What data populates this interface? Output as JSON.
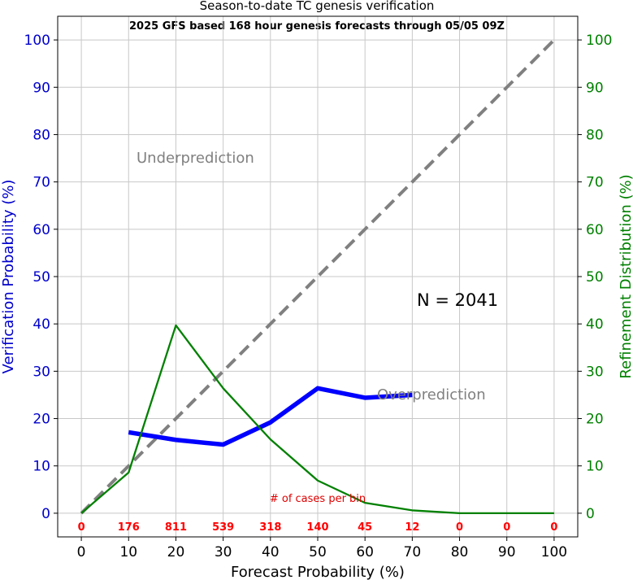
{
  "chart_data": {
    "type": "line",
    "title": "Season-to-date TC genesis verification",
    "subtitle": "2025 GFS based 168 hour genesis forecasts through 05/05 09Z",
    "xlabel": "Forecast Probability (%)",
    "ylabel_left": "Verification Probability (%)",
    "ylabel_right": "Refinement Distribution (%)",
    "xlim": [
      -5,
      105
    ],
    "ylim": [
      -5,
      105
    ],
    "xticks": [
      0,
      10,
      20,
      30,
      40,
      50,
      60,
      70,
      80,
      90,
      100
    ],
    "yticks": [
      0,
      10,
      20,
      30,
      40,
      50,
      60,
      70,
      80,
      90,
      100
    ],
    "grid": true,
    "series": [
      {
        "x": [
          0,
          100
        ],
        "y": [
          0,
          100
        ],
        "color": "#808080",
        "style": "dashed"
      },
      {
        "x": [
          10,
          20,
          30,
          40,
          50,
          60,
          70
        ],
        "y": [
          17.1,
          15.5,
          14.5,
          19.2,
          26.4,
          24.4,
          25.0
        ],
        "color": "#0000ff",
        "style": "solid"
      },
      {
        "x": [
          0,
          10,
          20,
          30,
          40,
          50,
          60,
          70,
          80,
          90,
          100
        ],
        "y": [
          0.0,
          8.6,
          39.7,
          26.4,
          15.6,
          6.9,
          2.2,
          0.6,
          0.0,
          0.0,
          0.0
        ],
        "color": "#008000",
        "style": "solid"
      }
    ],
    "annotations": {
      "underprediction": "Underprediction",
      "overprediction": "Overprediction",
      "n_label": "N = 2041",
      "cases_label": "# of cases per bin"
    },
    "cases_per_bin": {
      "x": [
        0,
        10,
        20,
        30,
        40,
        50,
        60,
        70,
        80,
        90,
        100
      ],
      "labels": [
        "0",
        "176",
        "811",
        "539",
        "318",
        "140",
        "45",
        "12",
        "0",
        "0",
        "0"
      ],
      "color": "#ff0000"
    },
    "colors": {
      "left_axis": "#0000cc",
      "right_axis": "#008000",
      "grid": "#c8c8c8",
      "annotation": "#808080"
    }
  }
}
